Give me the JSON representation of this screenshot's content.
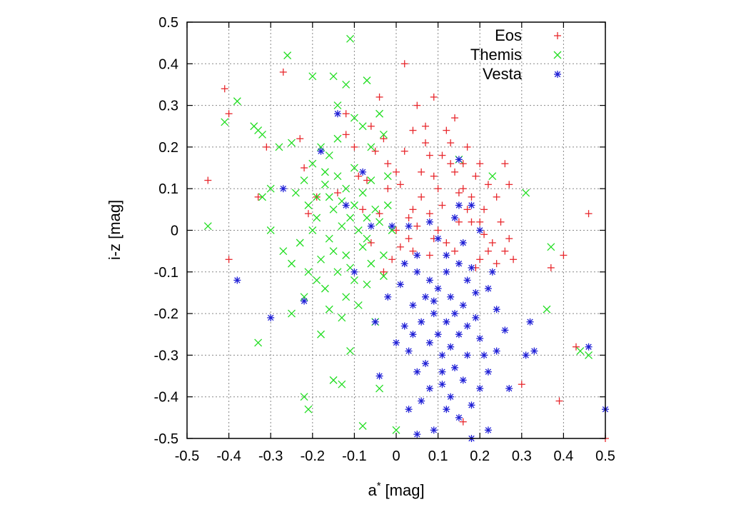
{
  "chart_data": {
    "type": "scatter",
    "title": "",
    "xlabel": "a",
    "xlabel_sup": "*",
    "xlabel_unit": "[mag]",
    "ylabel": "i-z [mag]",
    "xlim": [
      -0.5,
      0.5
    ],
    "ylim": [
      -0.5,
      0.5
    ],
    "x_ticks": [
      "-0.5",
      "-0.4",
      "-0.3",
      "-0.2",
      "-0.1",
      "0",
      "0.1",
      "0.2",
      "0.3",
      "0.4",
      "0.5"
    ],
    "y_ticks": [
      "-0.5",
      "-0.4",
      "-0.3",
      "-0.2",
      "-0.1",
      "0",
      "0.1",
      "0.2",
      "0.3",
      "0.4",
      "0.5"
    ],
    "grid": true,
    "legend_position": "top-right",
    "series": [
      {
        "name": "Eos",
        "marker": "plus",
        "color": "#e8282d",
        "points": [
          [
            -0.41,
            0.34
          ],
          [
            -0.4,
            0.28
          ],
          [
            -0.45,
            0.12
          ],
          [
            -0.4,
            -0.07
          ],
          [
            -0.33,
            0.08
          ],
          [
            -0.31,
            0.2
          ],
          [
            -0.27,
            0.38
          ],
          [
            -0.22,
            0.15
          ],
          [
            0.02,
            0.4
          ],
          [
            0.09,
            0.32
          ],
          [
            -0.04,
            0.32
          ],
          [
            -0.12,
            0.28
          ],
          [
            0.26,
            0.16
          ],
          [
            0.27,
            0.11
          ],
          [
            0.46,
            0.04
          ],
          [
            0.4,
            -0.06
          ],
          [
            0.37,
            -0.09
          ],
          [
            0.26,
            -0.05
          ],
          [
            0.28,
            -0.07
          ],
          [
            0.3,
            -0.37
          ],
          [
            0.39,
            -0.41
          ],
          [
            0.43,
            -0.28
          ],
          [
            0.16,
            -0.46
          ],
          [
            0.5,
            -0.5
          ],
          [
            -0.06,
            0.25
          ],
          [
            -0.12,
            0.23
          ],
          [
            -0.03,
            0.22
          ],
          [
            0.04,
            0.24
          ],
          [
            0.07,
            0.25
          ],
          [
            0.12,
            0.24
          ],
          [
            0.17,
            0.2
          ],
          [
            0.2,
            0.16
          ],
          [
            0.22,
            0.11
          ],
          [
            0.24,
            0.08
          ],
          [
            0.21,
            0.05
          ],
          [
            0.18,
            0.02
          ],
          [
            0.23,
            -0.03
          ],
          [
            0.2,
            -0.07
          ],
          [
            -0.03,
            -0.1
          ],
          [
            -0.06,
            -0.03
          ],
          [
            -0.08,
            0.05
          ],
          [
            -0.14,
            0.09
          ],
          [
            -0.19,
            0.08
          ],
          [
            -0.21,
            0.04
          ],
          [
            -0.23,
            0.22
          ],
          [
            0.05,
            0.3
          ],
          [
            0.14,
            0.27
          ],
          [
            0.13,
            0.21
          ],
          [
            0.09,
            0.13
          ],
          [
            0.06,
            0.08
          ],
          [
            0.03,
            0.03
          ],
          [
            0.0,
            0.14
          ],
          [
            0.11,
            0.06
          ],
          [
            0.15,
            0.02
          ],
          [
            0.16,
            0.1
          ],
          [
            0.19,
            0.13
          ],
          [
            0.25,
            0.02
          ],
          [
            0.27,
            -0.02
          ],
          [
            0.21,
            -0.01
          ],
          [
            0.01,
            -0.04
          ],
          [
            -0.01,
            -0.07
          ],
          [
            0.04,
            -0.05
          ],
          [
            0.08,
            -0.06
          ],
          [
            0.12,
            -0.03
          ],
          [
            -0.05,
            0.19
          ],
          [
            -0.1,
            0.2
          ],
          [
            -0.09,
            0.13
          ],
          [
            -0.02,
            0.1
          ],
          [
            0.08,
            0.18
          ],
          [
            0.1,
            0.1
          ],
          [
            0.14,
            0.14
          ],
          [
            0.17,
            0.05
          ],
          [
            0.02,
            0.19
          ],
          [
            0.06,
            0.14
          ],
          [
            -0.04,
            0.04
          ],
          [
            0.0,
            0.0
          ],
          [
            0.05,
            0.01
          ],
          [
            0.1,
            0.0
          ],
          [
            0.14,
            -0.05
          ],
          [
            0.19,
            -0.09
          ],
          [
            0.22,
            -0.05
          ],
          [
            0.24,
            -0.08
          ],
          [
            -0.02,
            0.16
          ],
          [
            0.01,
            0.11
          ],
          [
            0.04,
            0.05
          ],
          [
            0.13,
            0.16
          ],
          [
            0.07,
            0.21
          ],
          [
            0.11,
            0.18
          ],
          [
            -0.07,
            0.12
          ],
          [
            0.16,
            0.16
          ],
          [
            0.18,
            0.08
          ],
          [
            0.03,
            -0.02
          ],
          [
            0.09,
            -0.02
          ],
          [
            0.2,
            0.02
          ],
          [
            0.15,
            0.09
          ],
          [
            0.08,
            0.04
          ]
        ]
      },
      {
        "name": "Themis",
        "marker": "cross",
        "color": "#22dd22",
        "points": [
          [
            -0.26,
            0.42
          ],
          [
            -0.11,
            0.46
          ],
          [
            -0.38,
            0.31
          ],
          [
            -0.41,
            0.26
          ],
          [
            -0.34,
            0.25
          ],
          [
            -0.33,
            0.24
          ],
          [
            -0.32,
            0.23
          ],
          [
            -0.28,
            0.2
          ],
          [
            -0.25,
            0.21
          ],
          [
            -0.3,
            0.1
          ],
          [
            -0.32,
            0.08
          ],
          [
            -0.3,
            0.0
          ],
          [
            -0.45,
            0.01
          ],
          [
            -0.27,
            -0.05
          ],
          [
            -0.25,
            -0.2
          ],
          [
            -0.33,
            -0.27
          ],
          [
            -0.21,
            -0.43
          ],
          [
            -0.22,
            -0.4
          ],
          [
            -0.18,
            -0.25
          ],
          [
            -0.13,
            -0.21
          ],
          [
            -0.11,
            -0.29
          ],
          [
            -0.15,
            -0.36
          ],
          [
            -0.13,
            -0.37
          ],
          [
            -0.08,
            -0.47
          ],
          [
            -0.0,
            -0.48
          ],
          [
            -0.04,
            -0.38
          ],
          [
            -0.05,
            -0.22
          ],
          [
            -0.2,
            0.37
          ],
          [
            -0.15,
            0.37
          ],
          [
            -0.12,
            0.35
          ],
          [
            -0.14,
            0.3
          ],
          [
            -0.1,
            0.27
          ],
          [
            -0.07,
            0.36
          ],
          [
            -0.04,
            0.28
          ],
          [
            -0.08,
            0.25
          ],
          [
            -0.06,
            0.2
          ],
          [
            -0.03,
            0.23
          ],
          [
            0.23,
            0.13
          ],
          [
            0.31,
            0.09
          ],
          [
            0.37,
            -0.04
          ],
          [
            0.36,
            -0.19
          ],
          [
            0.44,
            -0.29
          ],
          [
            0.46,
            -0.3
          ],
          [
            0.15,
            0.17
          ],
          [
            -0.18,
            0.2
          ],
          [
            -0.16,
            0.18
          ],
          [
            -0.2,
            0.16
          ],
          [
            -0.22,
            0.12
          ],
          [
            -0.19,
            0.08
          ],
          [
            -0.17,
            0.11
          ],
          [
            -0.15,
            0.05
          ],
          [
            -0.13,
            0.07
          ],
          [
            -0.11,
            0.03
          ],
          [
            -0.09,
            0.0
          ],
          [
            -0.08,
            -0.04
          ],
          [
            -0.12,
            -0.06
          ],
          [
            -0.16,
            -0.02
          ],
          [
            -0.18,
            -0.07
          ],
          [
            -0.14,
            -0.1
          ],
          [
            -0.1,
            -0.12
          ],
          [
            -0.06,
            -0.08
          ],
          [
            -0.04,
            0.02
          ],
          [
            -0.02,
            0.06
          ],
          [
            -0.06,
            0.12
          ],
          [
            -0.1,
            0.15
          ],
          [
            -0.14,
            0.13
          ],
          [
            -0.2,
            0.0
          ],
          [
            -0.23,
            -0.03
          ],
          [
            -0.21,
            -0.1
          ],
          [
            -0.17,
            -0.14
          ],
          [
            -0.12,
            -0.16
          ],
          [
            -0.09,
            -0.18
          ],
          [
            -0.19,
            0.03
          ],
          [
            -0.15,
            -0.05
          ],
          [
            -0.11,
            -0.09
          ],
          [
            -0.07,
            -0.02
          ],
          [
            -0.05,
            0.05
          ],
          [
            -0.03,
            -0.06
          ],
          [
            -0.08,
            0.09
          ],
          [
            -0.12,
            0.1
          ],
          [
            -0.16,
            0.08
          ],
          [
            -0.13,
            0.01
          ],
          [
            -0.1,
            0.06
          ],
          [
            -0.07,
            0.03
          ],
          [
            -0.17,
            0.14
          ],
          [
            -0.21,
            0.06
          ],
          [
            -0.24,
            0.09
          ],
          [
            -0.19,
            -0.12
          ],
          [
            -0.22,
            -0.16
          ],
          [
            -0.16,
            -0.19
          ],
          [
            -0.07,
            -0.13
          ],
          [
            -0.03,
            -0.11
          ],
          [
            -0.01,
            0.0
          ],
          [
            -0.02,
            0.13
          ],
          [
            -0.25,
            -0.08
          ],
          [
            -0.14,
            0.22
          ]
        ]
      },
      {
        "name": "Vesta",
        "marker": "star",
        "color": "#1f1fd6",
        "points": [
          [
            -0.38,
            -0.12
          ],
          [
            -0.3,
            -0.21
          ],
          [
            -0.27,
            0.1
          ],
          [
            -0.22,
            -0.17
          ],
          [
            -0.18,
            0.19
          ],
          [
            -0.14,
            0.28
          ],
          [
            -0.08,
            0.14
          ],
          [
            -0.12,
            0.06
          ],
          [
            0.15,
            0.17
          ],
          [
            0.32,
            -0.22
          ],
          [
            0.31,
            -0.3
          ],
          [
            0.33,
            -0.29
          ],
          [
            0.46,
            -0.28
          ],
          [
            0.5,
            -0.43
          ],
          [
            0.27,
            -0.38
          ],
          [
            0.22,
            -0.48
          ],
          [
            0.18,
            -0.5
          ],
          [
            0.09,
            -0.48
          ],
          [
            0.05,
            -0.49
          ],
          [
            0.03,
            -0.43
          ],
          [
            -0.04,
            -0.35
          ],
          [
            0.0,
            -0.27
          ],
          [
            -0.05,
            -0.22
          ],
          [
            -0.02,
            -0.16
          ],
          [
            0.01,
            -0.13
          ],
          [
            0.05,
            -0.1
          ],
          [
            0.08,
            -0.12
          ],
          [
            0.12,
            -0.1
          ],
          [
            0.15,
            -0.08
          ],
          [
            0.18,
            -0.09
          ],
          [
            0.22,
            -0.14
          ],
          [
            0.24,
            -0.19
          ],
          [
            0.26,
            -0.24
          ],
          [
            0.24,
            -0.29
          ],
          [
            0.22,
            -0.34
          ],
          [
            0.2,
            -0.38
          ],
          [
            0.18,
            -0.42
          ],
          [
            0.15,
            -0.45
          ],
          [
            0.12,
            -0.43
          ],
          [
            0.08,
            -0.38
          ],
          [
            0.05,
            -0.34
          ],
          [
            0.03,
            -0.29
          ],
          [
            0.02,
            -0.23
          ],
          [
            0.04,
            -0.18
          ],
          [
            0.07,
            -0.16
          ],
          [
            0.1,
            -0.14
          ],
          [
            0.13,
            -0.16
          ],
          [
            0.16,
            -0.18
          ],
          [
            0.19,
            -0.21
          ],
          [
            0.2,
            -0.26
          ],
          [
            0.17,
            -0.3
          ],
          [
            0.14,
            -0.33
          ],
          [
            0.11,
            -0.3
          ],
          [
            0.08,
            -0.27
          ],
          [
            0.06,
            -0.22
          ],
          [
            0.09,
            -0.2
          ],
          [
            0.12,
            -0.22
          ],
          [
            0.15,
            -0.25
          ],
          [
            0.13,
            -0.28
          ],
          [
            0.1,
            -0.25
          ],
          [
            0.16,
            -0.36
          ],
          [
            0.11,
            -0.37
          ],
          [
            0.07,
            -0.32
          ],
          [
            0.19,
            -0.15
          ],
          [
            0.21,
            -0.3
          ],
          [
            0.06,
            -0.41
          ],
          [
            0.13,
            -0.4
          ],
          [
            0.09,
            -0.17
          ],
          [
            0.14,
            -0.2
          ],
          [
            0.17,
            -0.23
          ],
          [
            0.11,
            -0.34
          ],
          [
            0.04,
            -0.25
          ],
          [
            0.18,
            0.06
          ],
          [
            0.14,
            0.03
          ],
          [
            0.1,
            -0.02
          ],
          [
            0.05,
            -0.06
          ],
          [
            0.03,
            0.01
          ],
          [
            0.08,
            0.02
          ],
          [
            -0.01,
            0.01
          ],
          [
            0.2,
            0.0
          ],
          [
            0.16,
            -0.03
          ],
          [
            0.12,
            -0.06
          ],
          [
            0.02,
            -0.08
          ],
          [
            -0.1,
            -0.1
          ],
          [
            -0.06,
            0.01
          ],
          [
            0.15,
            0.06
          ],
          [
            0.17,
            -0.12
          ],
          [
            0.23,
            -0.1
          ]
        ]
      }
    ]
  }
}
